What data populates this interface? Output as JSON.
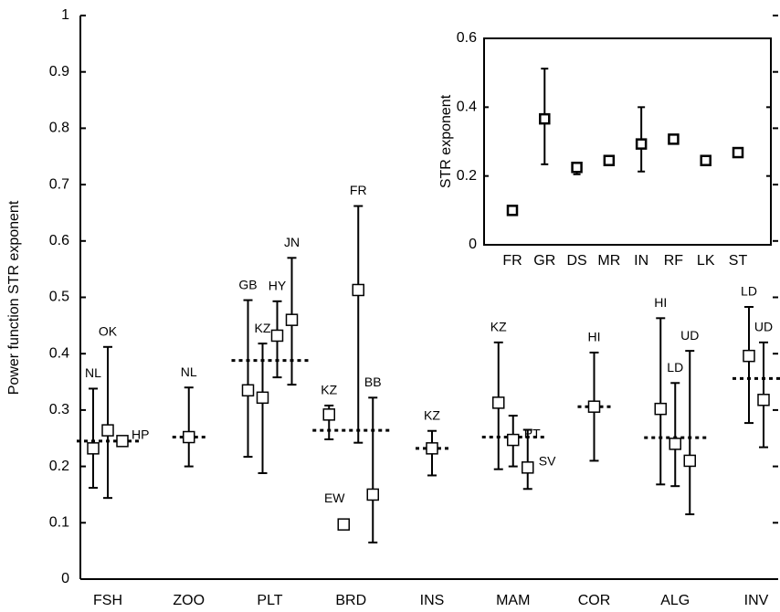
{
  "chart_data": [
    {
      "type": "errorbar",
      "y_label": "Power function STR exponent",
      "ylim": [
        0,
        1
      ],
      "yticks": [
        0,
        0.1,
        0.2,
        0.3,
        0.4,
        0.5,
        0.6,
        0.7,
        0.8,
        0.9,
        1
      ],
      "categories": [
        "FSH",
        "ZOO",
        "PLT",
        "BRD",
        "INS",
        "MAM",
        "COR",
        "ALG",
        "INV"
      ],
      "groups": [
        {
          "mean": 0.245,
          "points": [
            {
              "label": "NL",
              "value": 0.232,
              "low": 0.162,
              "high": 0.338
            },
            {
              "label": "OK",
              "value": 0.264,
              "low": 0.144,
              "high": 0.412
            },
            {
              "label": "HP",
              "value": 0.245,
              "low": null,
              "high": null
            }
          ]
        },
        {
          "mean": 0.252,
          "points": [
            {
              "label": "NL",
              "value": 0.252,
              "low": 0.2,
              "high": 0.34
            }
          ]
        },
        {
          "mean": 0.388,
          "points": [
            {
              "label": "GB",
              "value": 0.335,
              "low": 0.217,
              "high": 0.495
            },
            {
              "label": "KZ",
              "value": 0.322,
              "low": 0.188,
              "high": 0.418
            },
            {
              "label": "HY",
              "value": 0.432,
              "low": 0.358,
              "high": 0.493
            },
            {
              "label": "JN",
              "value": 0.46,
              "low": 0.345,
              "high": 0.57
            }
          ]
        },
        {
          "mean": 0.264,
          "points": [
            {
              "label": "KZ",
              "value": 0.292,
              "low": 0.248,
              "high": 0.308
            },
            {
              "label": "EW",
              "value": 0.097,
              "low": null,
              "high": null
            },
            {
              "label": "FR",
              "value": 0.513,
              "low": 0.242,
              "high": 0.662
            },
            {
              "label": "BB",
              "value": 0.15,
              "low": 0.065,
              "high": 0.322
            }
          ]
        },
        {
          "mean": 0.232,
          "points": [
            {
              "label": "KZ",
              "value": 0.232,
              "low": 0.184,
              "high": 0.263
            }
          ]
        },
        {
          "mean": 0.252,
          "points": [
            {
              "label": "KZ",
              "value": 0.313,
              "low": 0.195,
              "high": 0.42
            },
            {
              "label": "PT",
              "value": 0.247,
              "low": 0.2,
              "high": 0.29
            },
            {
              "label": "SV",
              "value": 0.198,
              "low": 0.16,
              "high": 0.265
            }
          ]
        },
        {
          "mean": 0.306,
          "points": [
            {
              "label": "HI",
              "value": 0.306,
              "low": 0.21,
              "high": 0.402
            }
          ]
        },
        {
          "mean": 0.251,
          "points": [
            {
              "label": "HI",
              "value": 0.302,
              "low": 0.168,
              "high": 0.463
            },
            {
              "label": "LD",
              "value": 0.24,
              "low": 0.165,
              "high": 0.348
            },
            {
              "label": "UD",
              "value": 0.21,
              "low": 0.115,
              "high": 0.405
            }
          ]
        },
        {
          "mean": 0.356,
          "points": [
            {
              "label": "LD",
              "value": 0.396,
              "low": 0.277,
              "high": 0.483
            },
            {
              "label": "UD",
              "value": 0.318,
              "low": 0.234,
              "high": 0.42
            }
          ]
        }
      ]
    },
    {
      "type": "errorbar-inset",
      "y_label": "STR exponent",
      "ylim": [
        0,
        0.6
      ],
      "yticks": [
        0,
        0.2,
        0.4,
        0.6
      ],
      "categories": [
        "FR",
        "GR",
        "DS",
        "MR",
        "IN",
        "RF",
        "LK",
        "ST"
      ],
      "values": [
        0.1,
        0.366,
        0.225,
        0.245,
        0.293,
        0.307,
        0.245,
        0.268
      ],
      "low": [
        null,
        0.234,
        0.205,
        null,
        0.213,
        null,
        null,
        null
      ],
      "high": [
        null,
        0.512,
        0.237,
        null,
        0.4,
        null,
        null,
        null
      ]
    }
  ]
}
